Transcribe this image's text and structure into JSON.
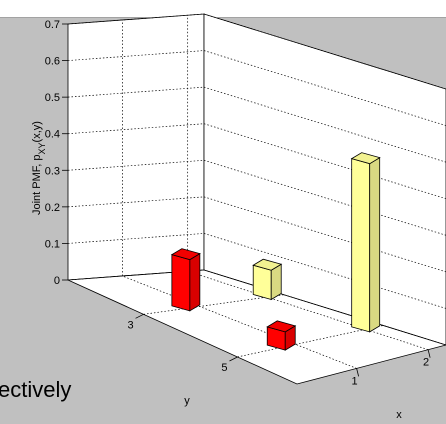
{
  "background_text": "ectively",
  "chart_data": {
    "type": "bar",
    "style": "3d",
    "zlabel": "Joint PMF, p",
    "zlabel_subscript": "XY",
    "zlabel_suffix": "(x,y)",
    "ylabel": "y",
    "xlabel": "x",
    "zlim": [
      0,
      0.7
    ],
    "z_ticks": [
      "0",
      "0.1",
      "0.2",
      "0.3",
      "0.4",
      "0.5",
      "0.6",
      "0.7"
    ],
    "y_ticks": [
      "3",
      "5"
    ],
    "x_ticks": [
      "1",
      "2"
    ],
    "grid": true,
    "bars": [
      {
        "x": 1,
        "y": 3,
        "value": 0.14,
        "color": "#ff0000"
      },
      {
        "x": 1,
        "y": 5,
        "value": 0.05,
        "color": "#ff0000"
      },
      {
        "x": 2,
        "y": 3,
        "value": 0.08,
        "color": "#ffff99"
      },
      {
        "x": 2,
        "y": 5,
        "value": 0.46,
        "color": "#ffff99"
      }
    ]
  }
}
